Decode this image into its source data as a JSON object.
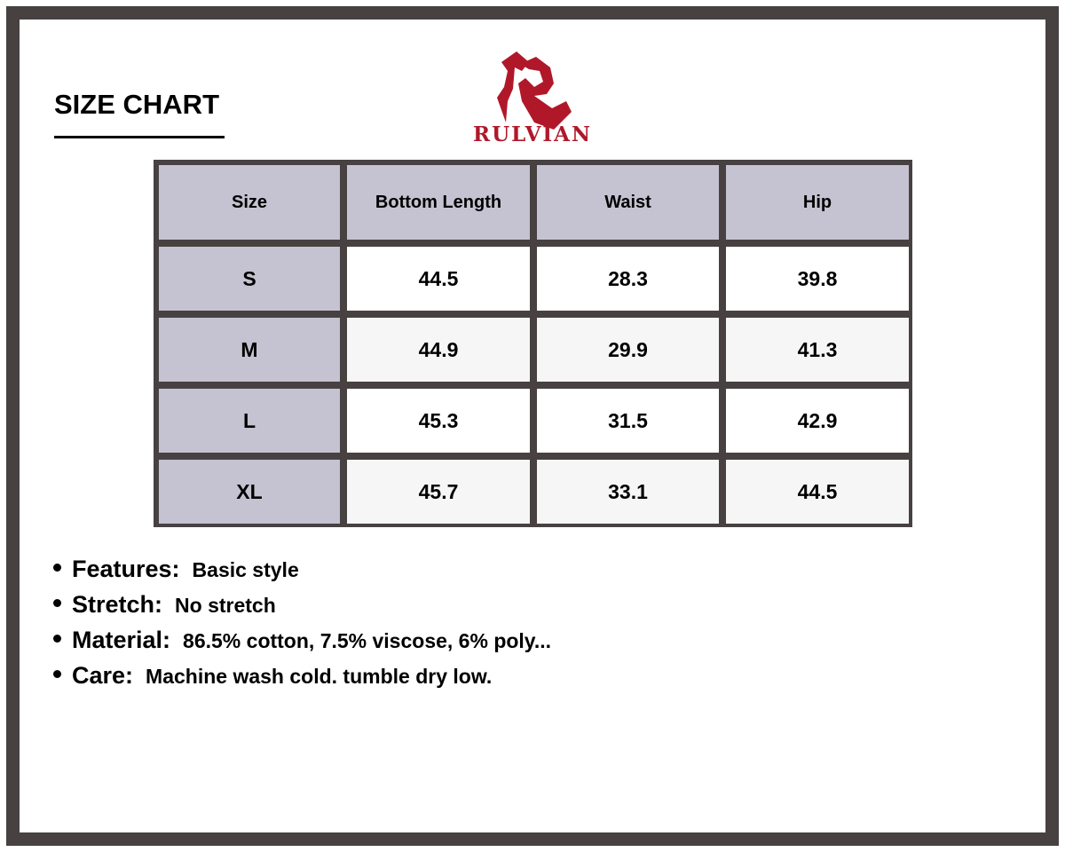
{
  "title": "SIZE CHART",
  "brand": {
    "name": "RULVIAN",
    "color": "#b0182a"
  },
  "table": {
    "headers": [
      "Size",
      "Bottom Length",
      "Waist",
      "Hip"
    ],
    "rows": [
      {
        "size": "S",
        "bottom_length": "44.5",
        "waist": "28.3",
        "hip": "39.8"
      },
      {
        "size": "M",
        "bottom_length": "44.9",
        "waist": "29.9",
        "hip": "41.3"
      },
      {
        "size": "L",
        "bottom_length": "45.3",
        "waist": "31.5",
        "hip": "42.9"
      },
      {
        "size": "XL",
        "bottom_length": "45.7",
        "waist": "33.1",
        "hip": "44.5"
      }
    ]
  },
  "notes": [
    {
      "label": "Features:",
      "text": "Basic style"
    },
    {
      "label": "Stretch:",
      "text": "No stretch"
    },
    {
      "label": "Material:",
      "text": "86.5% cotton, 7.5% viscose, 6% poly..."
    },
    {
      "label": "Care:",
      "text": "Machine wash cold. tumble dry low."
    }
  ]
}
